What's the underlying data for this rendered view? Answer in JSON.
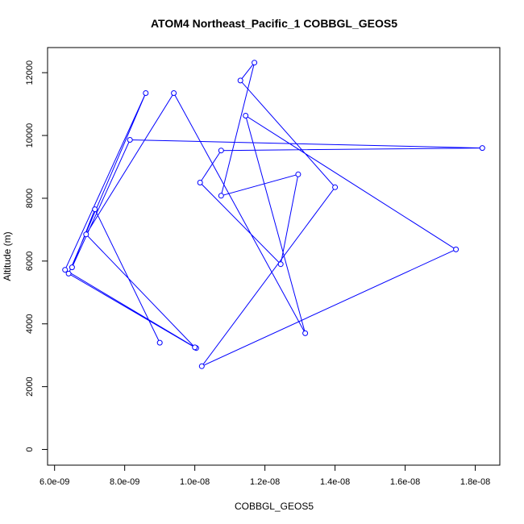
{
  "chart_data": {
    "type": "line",
    "title": "ATOM4 Northeast_Pacific_1 COBBGL_GEOS5",
    "xlabel": "COBBGL_GEOS5",
    "ylabel": "Altitude (m)",
    "x_ticks": [
      6e-09,
      8e-09,
      1e-08,
      1.2e-08,
      1.4e-08,
      1.6e-08,
      1.8e-08
    ],
    "x_tick_labels": [
      "6.0e-09",
      "8.0e-09",
      "1.0e-08",
      "1.2e-08",
      "1.4e-08",
      "1.6e-08",
      "1.8e-08"
    ],
    "y_ticks": [
      0,
      2000,
      4000,
      6000,
      8000,
      10000,
      12000
    ],
    "y_tick_labels": [
      "0",
      "2000",
      "4000",
      "6000",
      "8000",
      "10000",
      "12000"
    ],
    "xlim": [
      5.8e-09,
      1.87e-08
    ],
    "ylim": [
      -500,
      12800
    ],
    "grid": false,
    "legend": "none",
    "series": [
      {
        "color": "#0000ff",
        "marker": "open-circle",
        "points": [
          {
            "x": 1.004e-08,
            "y": 3230
          },
          {
            "x": 6.3e-09,
            "y": 5720
          },
          {
            "x": 8.6e-09,
            "y": 11350
          },
          {
            "x": 6.4e-09,
            "y": 5600
          },
          {
            "x": 1e-08,
            "y": 3250
          },
          {
            "x": 6.9e-09,
            "y": 6850
          },
          {
            "x": 9.4e-09,
            "y": 11350
          },
          {
            "x": 1.315e-08,
            "y": 3700
          },
          {
            "x": 1.145e-08,
            "y": 10630
          },
          {
            "x": 1.745e-08,
            "y": 6370
          },
          {
            "x": 1.02e-08,
            "y": 2650
          },
          {
            "x": 1.4e-08,
            "y": 8350
          },
          {
            "x": 1.13e-08,
            "y": 11750
          },
          {
            "x": 1.17e-08,
            "y": 12320
          },
          {
            "x": 1.075e-08,
            "y": 8080
          },
          {
            "x": 1.295e-08,
            "y": 8760
          },
          {
            "x": 1.245e-08,
            "y": 5900
          },
          {
            "x": 1.015e-08,
            "y": 8500
          },
          {
            "x": 1.075e-08,
            "y": 9520
          },
          {
            "x": 1.82e-08,
            "y": 9600
          },
          {
            "x": 8.15e-09,
            "y": 9860
          },
          {
            "x": 6.5e-09,
            "y": 5800
          },
          {
            "x": 7.15e-09,
            "y": 7650
          },
          {
            "x": 9e-09,
            "y": 3400
          }
        ]
      }
    ]
  }
}
